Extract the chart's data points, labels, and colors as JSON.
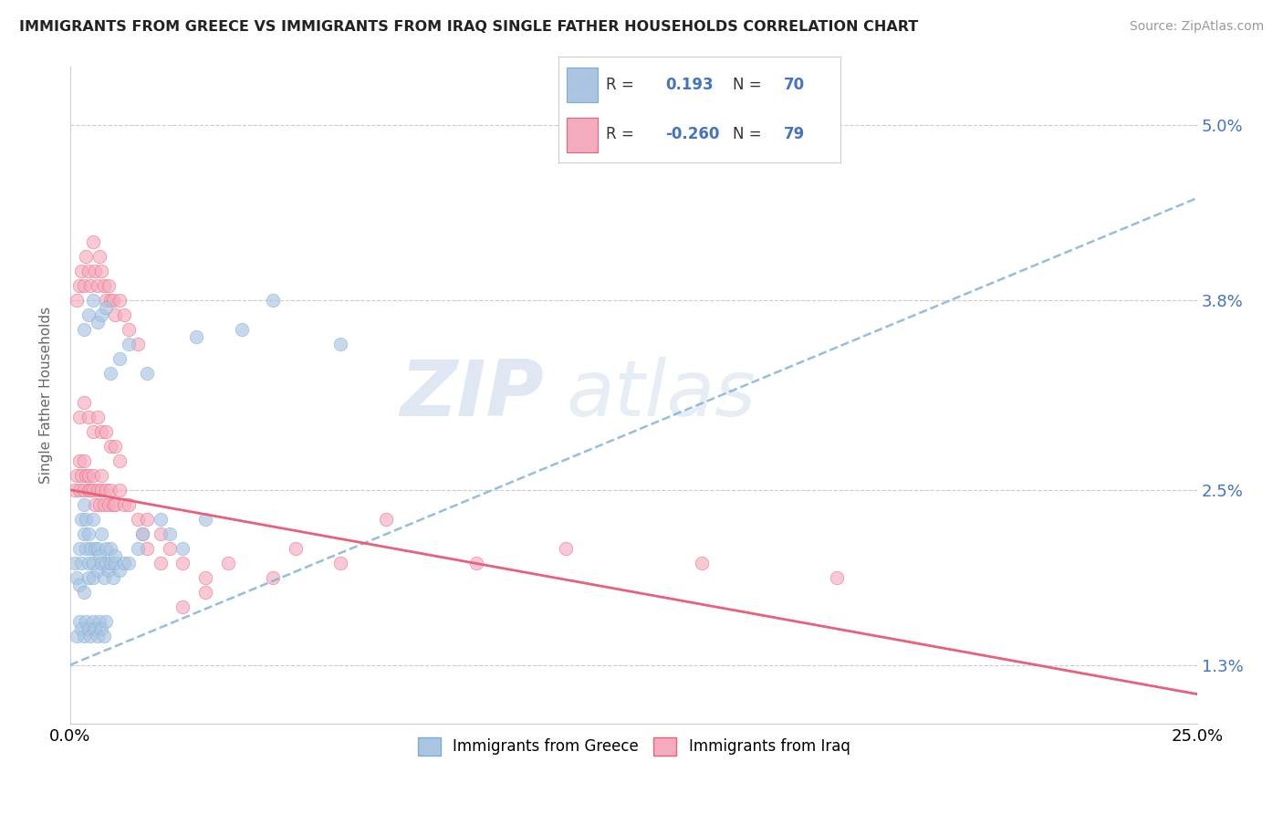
{
  "title": "IMMIGRANTS FROM GREECE VS IMMIGRANTS FROM IRAQ SINGLE FATHER HOUSEHOLDS CORRELATION CHART",
  "source": "Source: ZipAtlas.com",
  "xlabel_greece": "Immigrants from Greece",
  "xlabel_iraq": "Immigrants from Iraq",
  "ylabel": "Single Father Households",
  "x_min": 0.0,
  "x_max": 25.0,
  "y_min": 0.9,
  "y_max": 5.4,
  "y_ticks": [
    1.3,
    2.5,
    3.8,
    5.0
  ],
  "x_ticks": [
    0.0,
    25.0
  ],
  "r_greece": 0.193,
  "n_greece": 70,
  "r_iraq": -0.26,
  "n_iraq": 79,
  "color_greece": "#aac4e2",
  "color_iraq": "#f5abbe",
  "line_color_greece": "#7aaed6",
  "line_color_iraq": "#e8607a",
  "watermark_zip": "ZIP",
  "watermark_atlas": "atlas",
  "greece_line_start_y": 1.3,
  "greece_line_end_y": 4.5,
  "iraq_line_start_y": 2.5,
  "iraq_line_end_y": 1.1,
  "greece_scatter_x": [
    0.1,
    0.15,
    0.2,
    0.2,
    0.25,
    0.25,
    0.3,
    0.3,
    0.3,
    0.35,
    0.35,
    0.4,
    0.4,
    0.4,
    0.45,
    0.5,
    0.5,
    0.5,
    0.55,
    0.6,
    0.6,
    0.65,
    0.7,
    0.7,
    0.75,
    0.8,
    0.8,
    0.85,
    0.9,
    0.9,
    0.95,
    1.0,
    1.0,
    1.1,
    1.2,
    1.3,
    1.5,
    1.6,
    2.0,
    2.2,
    2.5,
    3.0,
    0.15,
    0.2,
    0.25,
    0.3,
    0.35,
    0.4,
    0.45,
    0.5,
    0.55,
    0.6,
    0.65,
    0.7,
    0.75,
    0.8,
    0.3,
    0.4,
    0.5,
    0.6,
    0.7,
    0.8,
    4.5,
    6.0,
    3.8,
    2.8,
    0.9,
    1.1,
    1.3,
    1.7
  ],
  "greece_scatter_y": [
    2.0,
    1.9,
    1.85,
    2.1,
    2.0,
    2.3,
    1.8,
    2.2,
    2.4,
    2.1,
    2.3,
    1.9,
    2.0,
    2.2,
    2.1,
    1.9,
    2.0,
    2.3,
    2.1,
    1.95,
    2.1,
    2.05,
    2.0,
    2.2,
    1.9,
    2.0,
    2.1,
    1.95,
    2.0,
    2.1,
    1.9,
    2.0,
    2.05,
    1.95,
    2.0,
    2.0,
    2.1,
    2.2,
    2.3,
    2.2,
    2.1,
    2.3,
    1.5,
    1.6,
    1.55,
    1.5,
    1.6,
    1.55,
    1.5,
    1.6,
    1.55,
    1.5,
    1.6,
    1.55,
    1.5,
    1.6,
    3.6,
    3.7,
    3.8,
    3.65,
    3.7,
    3.75,
    3.8,
    3.5,
    3.6,
    3.55,
    3.3,
    3.4,
    3.5,
    3.3
  ],
  "iraq_scatter_x": [
    0.1,
    0.15,
    0.2,
    0.2,
    0.25,
    0.3,
    0.3,
    0.35,
    0.4,
    0.4,
    0.45,
    0.5,
    0.5,
    0.55,
    0.6,
    0.65,
    0.7,
    0.7,
    0.75,
    0.8,
    0.85,
    0.9,
    0.95,
    1.0,
    1.1,
    1.2,
    1.3,
    1.5,
    1.7,
    2.0,
    2.2,
    2.5,
    3.0,
    3.5,
    5.0,
    7.0,
    9.0,
    11.0,
    14.0,
    17.0,
    0.15,
    0.2,
    0.25,
    0.3,
    0.35,
    0.4,
    0.45,
    0.5,
    0.55,
    0.6,
    0.65,
    0.7,
    0.75,
    0.8,
    0.85,
    0.9,
    0.95,
    1.0,
    1.1,
    1.2,
    1.3,
    1.5,
    0.2,
    0.3,
    0.4,
    0.5,
    0.6,
    0.7,
    0.8,
    0.9,
    1.0,
    1.1,
    4.5,
    6.0,
    3.0,
    2.5,
    2.0,
    1.7,
    1.6
  ],
  "iraq_scatter_y": [
    2.5,
    2.6,
    2.5,
    2.7,
    2.6,
    2.5,
    2.7,
    2.6,
    2.5,
    2.6,
    2.5,
    2.6,
    2.5,
    2.4,
    2.5,
    2.4,
    2.5,
    2.6,
    2.4,
    2.5,
    2.4,
    2.5,
    2.4,
    2.4,
    2.5,
    2.4,
    2.4,
    2.3,
    2.3,
    2.2,
    2.1,
    2.0,
    1.9,
    2.0,
    2.1,
    2.3,
    2.0,
    2.1,
    2.0,
    1.9,
    3.8,
    3.9,
    4.0,
    3.9,
    4.1,
    4.0,
    3.9,
    4.2,
    4.0,
    3.9,
    4.1,
    4.0,
    3.9,
    3.8,
    3.9,
    3.8,
    3.8,
    3.7,
    3.8,
    3.7,
    3.6,
    3.5,
    3.0,
    3.1,
    3.0,
    2.9,
    3.0,
    2.9,
    2.9,
    2.8,
    2.8,
    2.7,
    1.9,
    2.0,
    1.8,
    1.7,
    2.0,
    2.1,
    2.2
  ]
}
